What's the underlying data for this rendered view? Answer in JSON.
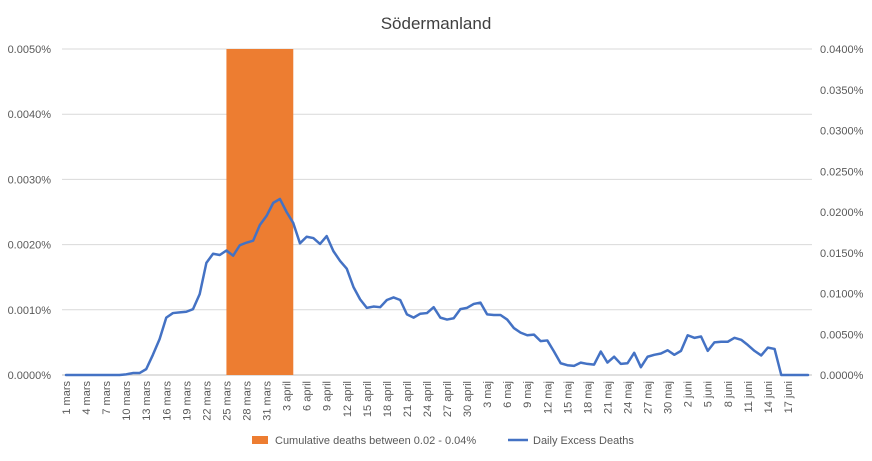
{
  "chart_data": {
    "type": "line",
    "title": "Södermanland",
    "colors": {
      "band": "#ED7D31",
      "line": "#4472C4",
      "grid": "#D9D9D9",
      "text": "#595959"
    },
    "y_left": {
      "min": 0,
      "max": 0.005,
      "ticks": [
        "0.0000%",
        "0.0010%",
        "0.0020%",
        "0.0030%",
        "0.0040%",
        "0.0050%"
      ]
    },
    "y_right": {
      "min": 0,
      "max": 0.0004,
      "ticks": [
        "0.0000%",
        "0.0050%",
        "0.0100%",
        "0.0150%",
        "0.0200%",
        "0.0250%",
        "0.0300%",
        "0.0350%",
        "0.0400%"
      ]
    },
    "x_tick_labels": [
      "1 mars",
      "4 mars",
      "7 mars",
      "10 mars",
      "13 mars",
      "16 mars",
      "19 mars",
      "22 mars",
      "25 mars",
      "28 mars",
      "31 mars",
      "3 april",
      "6 april",
      "9 april",
      "12 april",
      "15 april",
      "18 april",
      "21 april",
      "24 april",
      "27 april",
      "30 april",
      "3 maj",
      "6 maj",
      "9 maj",
      "12 maj",
      "15 maj",
      "18 maj",
      "21 maj",
      "24 maj",
      "27 maj",
      "30 maj",
      "2 juni",
      "5 juni",
      "8 juni",
      "11 juni",
      "14 juni",
      "17 juni"
    ],
    "band": {
      "label": "Cumulative deaths between 0.02 - 0.04%",
      "start_index": 24,
      "end_index": 34
    },
    "series": [
      {
        "name": "Daily Excess Deaths",
        "axis": "left",
        "values": [
          0,
          0,
          0,
          0,
          0,
          0,
          0,
          0,
          0,
          1e-05,
          3e-05,
          3e-05,
          9e-05,
          0.00031,
          0.00055,
          0.00088,
          0.00095,
          0.00096,
          0.00097,
          0.00101,
          0.00124,
          0.00172,
          0.00186,
          0.00184,
          0.00191,
          0.00183,
          0.00199,
          0.00203,
          0.00206,
          0.0023,
          0.00244,
          0.00264,
          0.0027,
          0.0025,
          0.00233,
          0.00202,
          0.00212,
          0.0021,
          0.00201,
          0.00213,
          0.0019,
          0.00175,
          0.00163,
          0.00135,
          0.00116,
          0.00103,
          0.00105,
          0.00104,
          0.00115,
          0.00119,
          0.00115,
          0.00093,
          0.00088,
          0.00094,
          0.00095,
          0.00104,
          0.00088,
          0.00085,
          0.00087,
          0.00101,
          0.00103,
          0.00109,
          0.00111,
          0.00093,
          0.00092,
          0.00092,
          0.00085,
          0.00072,
          0.00065,
          0.00061,
          0.00062,
          0.00052,
          0.00053,
          0.00036,
          0.00018,
          0.00015,
          0.00014,
          0.00019,
          0.00017,
          0.00016,
          0.00036,
          0.00019,
          0.00028,
          0.00017,
          0.00018,
          0.00034,
          0.00012,
          0.00028,
          0.00031,
          0.00033,
          0.00038,
          0.00031,
          0.00037,
          0.00061,
          0.00057,
          0.00059,
          0.00037,
          0.0005,
          0.00051,
          0.00051,
          0.00057,
          0.00054,
          0.00046,
          0.00037,
          0.0003,
          0.00042,
          0.0004,
          0,
          0,
          0,
          0,
          0
        ]
      }
    ]
  }
}
